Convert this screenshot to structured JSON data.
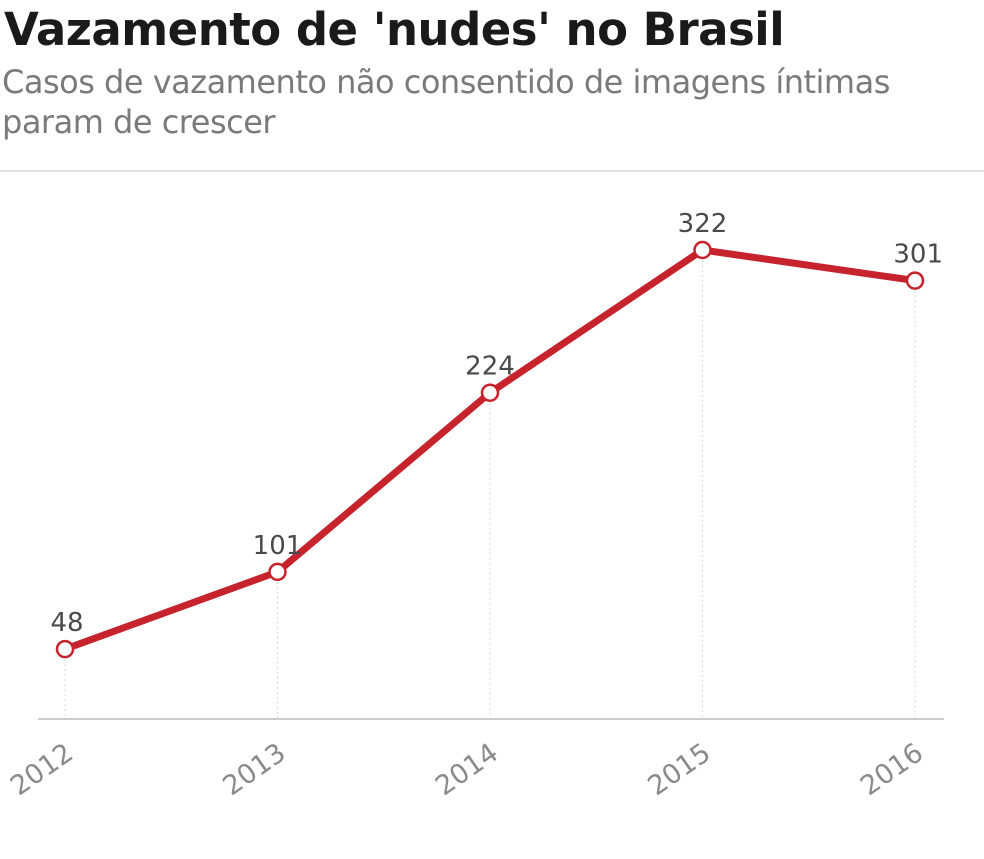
{
  "header": {
    "title": "Vazamento de 'nudes' no Brasil",
    "subtitle": "Casos de vazamento não consentido de imagens íntimas param de crescer"
  },
  "colors": {
    "line": "#c6232c",
    "marker_fill": "#ffffff",
    "axis": "#cccccc",
    "gridline": "#d8d8d8",
    "rule": "#e2e2e2"
  },
  "chart_data": {
    "type": "line",
    "x": [
      "2012",
      "2013",
      "2014",
      "2015",
      "2016"
    ],
    "series": [
      {
        "values": [
          48,
          101,
          224,
          322,
          301
        ]
      }
    ],
    "data_labels": [
      "48",
      "101",
      "224",
      "322",
      "301"
    ],
    "xlabel": "",
    "ylabel": "",
    "ylim": [
      0,
      322
    ],
    "grid": "vertical dotted lines at each year",
    "legend": "none",
    "tick_label_rotation": "diagonal"
  }
}
